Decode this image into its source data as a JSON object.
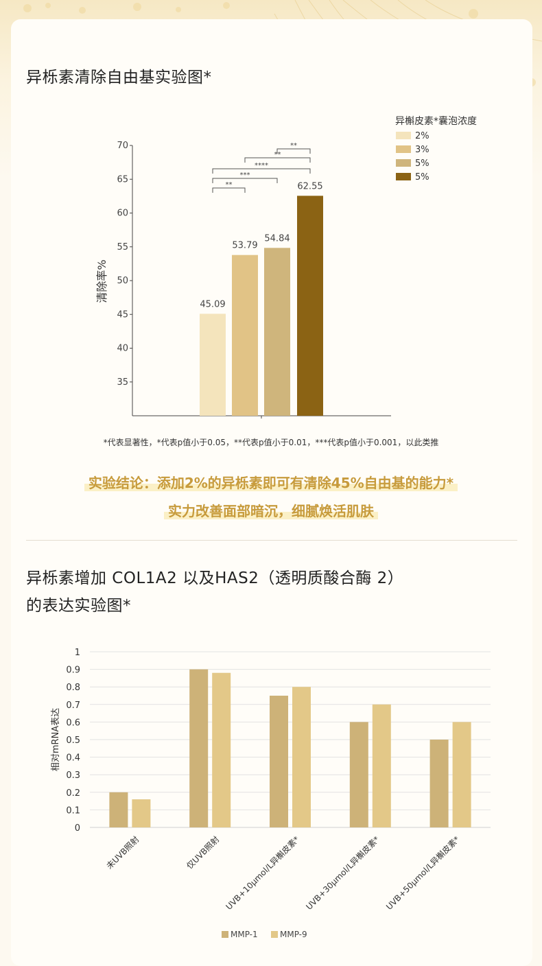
{
  "chart_data": [
    {
      "type": "bar",
      "title": "异栎素清除自由基实验图*",
      "ylabel": "清除率%",
      "xlabel": "",
      "ylim": [
        30,
        70
      ],
      "yticks": [
        35,
        40,
        45,
        50,
        55,
        60,
        65,
        70
      ],
      "legend_title": "异槲皮素*囊泡浓度",
      "legend_position": "top-right",
      "series": [
        {
          "name": "2%",
          "value": 45.09,
          "label": "45.09",
          "color": "#f4e4bc"
        },
        {
          "name": "3%",
          "value": 53.79,
          "label": "53.79",
          "color": "#e1c386"
        },
        {
          "name": "5%",
          "value": 54.84,
          "label": "54.84",
          "color": "#cfb57c"
        },
        {
          "name": "5%",
          "value": 62.55,
          "label": "62.55",
          "color": "#8b6314"
        }
      ],
      "significance": [
        {
          "from": 2,
          "to": 3,
          "text": "**"
        },
        {
          "from": 1,
          "to": 3,
          "text": "**"
        },
        {
          "from": 0,
          "to": 3,
          "text": "****"
        },
        {
          "from": 0,
          "to": 2,
          "text": "***"
        },
        {
          "from": 0,
          "to": 1,
          "text": "**"
        }
      ]
    },
    {
      "type": "bar",
      "title": "异栎素增加 COL1A2 以及HAS2（透明质酸合酶 2）的表达实验图*",
      "ylabel": "相对mRNA表达",
      "xlabel": "",
      "ylim": [
        0,
        1
      ],
      "yticks": [
        "0",
        "0.1",
        "0.2",
        "0.3",
        "0.4",
        "0.5",
        "0.6",
        "0.7",
        "0.8",
        "0.9",
        "1"
      ],
      "grid": true,
      "legend_position": "bottom-center",
      "categories": [
        "未UVB照射",
        "仅UVB照射",
        "UVB+10μmol/L异槲皮素*",
        "UVB+30μmol/L异槲皮素*",
        "UVB+50μmol/L异槲皮素*"
      ],
      "series": [
        {
          "name": "MMP-1",
          "values": [
            0.2,
            0.9,
            0.75,
            0.6,
            0.5
          ],
          "color": "#cdb278"
        },
        {
          "name": "MMP-9",
          "values": [
            0.16,
            0.88,
            0.8,
            0.7,
            0.6
          ],
          "color": "#e3c888"
        }
      ]
    }
  ],
  "section1": {
    "title": "异栎素清除自由基实验图*",
    "note": "*代表显著性，*代表p值小于0.05，**代表p值小于0.01，***代表p值小于0.001，以此类推",
    "conclusion_line1": "实验结论：添加2%的异栎素即可有清除45%自由基的能力*",
    "conclusion_line2": "实力改善面部暗沉，细腻焕活肌肤"
  },
  "section2": {
    "title_line1": "异栎素增加 COL1A2 以及HAS2（透明质酸合酶 2）",
    "title_line2": "的表达实验图*"
  },
  "colors": {
    "accent": "#c79b3c",
    "text": "#333333",
    "axis": "#555555"
  }
}
